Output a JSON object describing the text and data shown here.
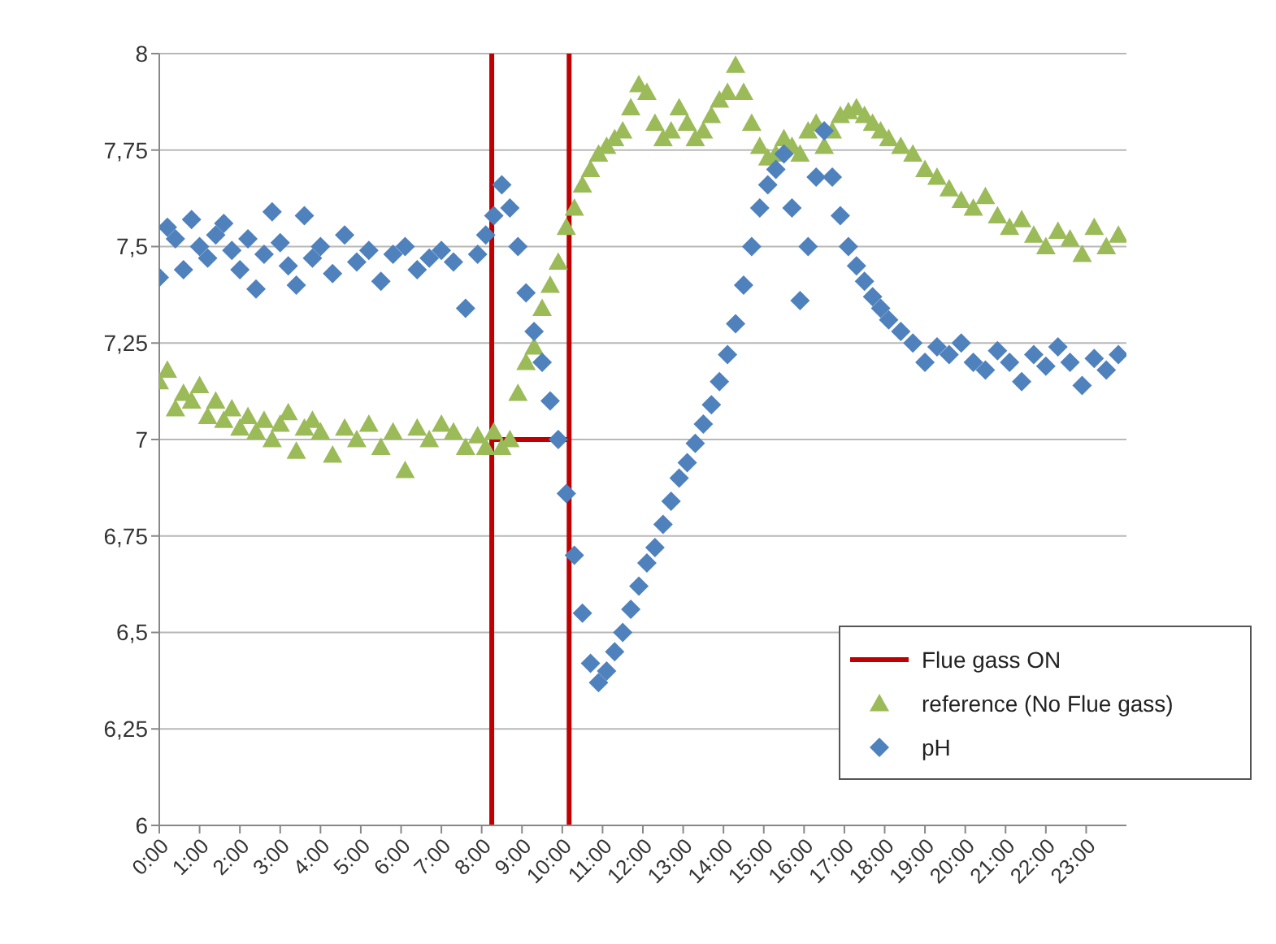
{
  "chart_data": {
    "type": "scatter",
    "xlim": [
      0,
      24
    ],
    "xticks": [
      {
        "value": 0,
        "label": "0:00"
      },
      {
        "value": 1,
        "label": "1:00"
      },
      {
        "value": 2,
        "label": "2:00"
      },
      {
        "value": 3,
        "label": "3:00"
      },
      {
        "value": 4,
        "label": "4:00"
      },
      {
        "value": 5,
        "label": "5:00"
      },
      {
        "value": 6,
        "label": "6:00"
      },
      {
        "value": 7,
        "label": "7:00"
      },
      {
        "value": 8,
        "label": "8:00"
      },
      {
        "value": 9,
        "label": "9:00"
      },
      {
        "value": 10,
        "label": "10:00"
      },
      {
        "value": 11,
        "label": "11:00"
      },
      {
        "value": 12,
        "label": "12:00"
      },
      {
        "value": 13,
        "label": "13:00"
      },
      {
        "value": 14,
        "label": "14:00"
      },
      {
        "value": 15,
        "label": "15:00"
      },
      {
        "value": 16,
        "label": "16:00"
      },
      {
        "value": 17,
        "label": "17:00"
      },
      {
        "value": 18,
        "label": "18:00"
      },
      {
        "value": 19,
        "label": "19:00"
      },
      {
        "value": 20,
        "label": "20:00"
      },
      {
        "value": 21,
        "label": "21:00"
      },
      {
        "value": 22,
        "label": "22:00"
      },
      {
        "value": 23,
        "label": "23:00"
      }
    ],
    "ylim": [
      6,
      8
    ],
    "yticks": [
      6,
      {
        "value": 6.25,
        "label": "6,25"
      },
      {
        "value": 6.5,
        "label": "6,5"
      },
      {
        "value": 6.75,
        "label": "6,75"
      },
      7,
      {
        "value": 7.25,
        "label": "7,25"
      },
      {
        "value": 7.5,
        "label": "7,5"
      },
      {
        "value": 7.75,
        "label": "7,75"
      },
      8
    ],
    "grid": "y",
    "legend": "bottom right",
    "series": [
      {
        "name": "Flue gass ON",
        "type": "line",
        "color": "#c00000",
        "marker": "none",
        "x": [
          8.25,
          8.25,
          8.25,
          10.17,
          10.17,
          10.17
        ],
        "values": [
          6,
          8,
          7,
          7,
          8,
          6
        ]
      },
      {
        "name": "reference (No Flue gass)",
        "color": "#9bbb59",
        "marker": "triangle",
        "x": [
          0,
          0.2,
          0.4,
          0.6,
          0.8,
          1,
          1.2,
          1.4,
          1.6,
          1.8,
          2,
          2.2,
          2.4,
          2.6,
          2.8,
          3,
          3.2,
          3.4,
          3.6,
          3.8,
          4,
          4.3,
          4.6,
          4.9,
          5.2,
          5.5,
          5.8,
          6.1,
          6.4,
          6.7,
          7,
          7.3,
          7.6,
          7.9,
          8.1,
          8.3,
          8.5,
          8.7,
          8.9,
          9.1,
          9.3,
          9.5,
          9.7,
          9.9,
          10.1,
          10.3,
          10.5,
          10.7,
          10.9,
          11.1,
          11.3,
          11.5,
          11.7,
          11.9,
          12.1,
          12.3,
          12.5,
          12.7,
          12.9,
          13.1,
          13.3,
          13.5,
          13.7,
          13.9,
          14.1,
          14.3,
          14.5,
          14.7,
          14.9,
          15.1,
          15.3,
          15.5,
          15.7,
          15.9,
          16.1,
          16.3,
          16.5,
          16.7,
          16.9,
          17.1,
          17.3,
          17.5,
          17.7,
          17.9,
          18.1,
          18.4,
          18.7,
          19,
          19.3,
          19.6,
          19.9,
          20.2,
          20.5,
          20.8,
          21.1,
          21.4,
          21.7,
          22,
          22.3,
          22.6,
          22.9,
          23.2,
          23.5,
          23.8
        ],
        "values": [
          7.15,
          7.18,
          7.08,
          7.12,
          7.1,
          7.14,
          7.06,
          7.1,
          7.05,
          7.08,
          7.03,
          7.06,
          7.02,
          7.05,
          7.0,
          7.04,
          7.07,
          6.97,
          7.03,
          7.05,
          7.02,
          6.96,
          7.03,
          7.0,
          7.04,
          6.98,
          7.02,
          6.92,
          7.03,
          7.0,
          7.04,
          7.02,
          6.98,
          7.01,
          6.98,
          7.02,
          6.98,
          7.0,
          7.12,
          7.2,
          7.24,
          7.34,
          7.4,
          7.46,
          7.55,
          7.6,
          7.66,
          7.7,
          7.74,
          7.76,
          7.78,
          7.8,
          7.86,
          7.92,
          7.9,
          7.82,
          7.78,
          7.8,
          7.86,
          7.82,
          7.78,
          7.8,
          7.84,
          7.88,
          7.9,
          7.97,
          7.9,
          7.82,
          7.76,
          7.73,
          7.74,
          7.78,
          7.76,
          7.74,
          7.8,
          7.82,
          7.76,
          7.8,
          7.84,
          7.85,
          7.86,
          7.84,
          7.82,
          7.8,
          7.78,
          7.76,
          7.74,
          7.7,
          7.68,
          7.65,
          7.62,
          7.6,
          7.63,
          7.58,
          7.55,
          7.57,
          7.53,
          7.5,
          7.54,
          7.52,
          7.48,
          7.55,
          7.5,
          7.53
        ]
      },
      {
        "name": "pH",
        "color": "#4f81bd",
        "marker": "diamond",
        "x": [
          0,
          0.2,
          0.4,
          0.6,
          0.8,
          1,
          1.2,
          1.4,
          1.6,
          1.8,
          2,
          2.2,
          2.4,
          2.6,
          2.8,
          3,
          3.2,
          3.4,
          3.6,
          3.8,
          4,
          4.3,
          4.6,
          4.9,
          5.2,
          5.5,
          5.8,
          6.1,
          6.4,
          6.7,
          7,
          7.3,
          7.6,
          7.9,
          8.1,
          8.3,
          8.5,
          8.7,
          8.9,
          9.1,
          9.3,
          9.5,
          9.7,
          9.9,
          10.1,
          10.3,
          10.5,
          10.7,
          10.9,
          11.1,
          11.3,
          11.5,
          11.7,
          11.9,
          12.1,
          12.3,
          12.5,
          12.7,
          12.9,
          13.1,
          13.3,
          13.5,
          13.7,
          13.9,
          14.1,
          14.3,
          14.5,
          14.7,
          14.9,
          15.1,
          15.3,
          15.5,
          15.7,
          15.9,
          16.1,
          16.3,
          16.5,
          16.7,
          16.9,
          17.1,
          17.3,
          17.5,
          17.7,
          17.9,
          18.1,
          18.4,
          18.7,
          19,
          19.3,
          19.6,
          19.9,
          20.2,
          20.5,
          20.8,
          21.1,
          21.4,
          21.7,
          22,
          22.3,
          22.6,
          22.9,
          23.2,
          23.5,
          23.8
        ],
        "values": [
          7.42,
          7.55,
          7.52,
          7.44,
          7.57,
          7.5,
          7.47,
          7.53,
          7.56,
          7.49,
          7.44,
          7.52,
          7.39,
          7.48,
          7.59,
          7.51,
          7.45,
          7.4,
          7.58,
          7.47,
          7.5,
          7.43,
          7.53,
          7.46,
          7.49,
          7.41,
          7.48,
          7.5,
          7.44,
          7.47,
          7.49,
          7.46,
          7.34,
          7.48,
          7.53,
          7.58,
          7.66,
          7.6,
          7.5,
          7.38,
          7.28,
          7.2,
          7.1,
          7.0,
          6.86,
          6.7,
          6.55,
          6.42,
          6.37,
          6.4,
          6.45,
          6.5,
          6.56,
          6.62,
          6.68,
          6.72,
          6.78,
          6.84,
          6.9,
          6.94,
          6.99,
          7.04,
          7.09,
          7.15,
          7.22,
          7.3,
          7.4,
          7.5,
          7.6,
          7.66,
          7.7,
          7.74,
          7.6,
          7.36,
          7.5,
          7.68,
          7.8,
          7.68,
          7.58,
          7.5,
          7.45,
          7.41,
          7.37,
          7.34,
          7.31,
          7.28,
          7.25,
          7.2,
          7.24,
          7.22,
          7.25,
          7.2,
          7.18,
          7.23,
          7.2,
          7.15,
          7.22,
          7.19,
          7.24,
          7.2,
          7.14,
          7.21,
          7.18,
          7.22
        ]
      }
    ]
  }
}
